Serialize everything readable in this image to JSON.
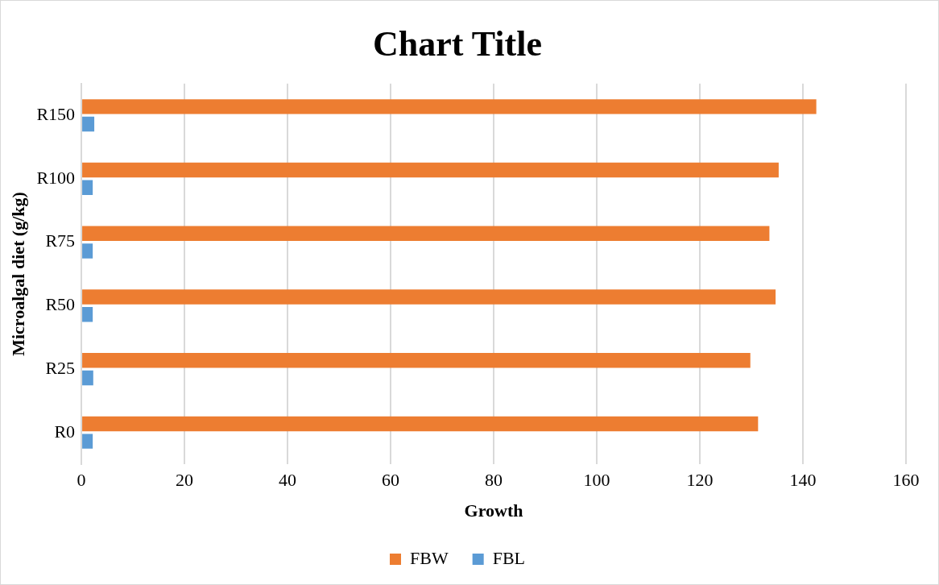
{
  "chart_data": {
    "type": "bar",
    "orientation": "horizontal",
    "title": "Chart Title",
    "xlabel": "Growth",
    "ylabel": "Microalgal diet (g/kg)",
    "categories": [
      "R150",
      "R100",
      "R75",
      "R50",
      "R25",
      "R0"
    ],
    "series": [
      {
        "name": "FBW",
        "color": "#ed7d31",
        "values": [
          142.6,
          135.3,
          133.5,
          134.7,
          129.8,
          131.3
        ]
      },
      {
        "name": "FBL",
        "color": "#5b9bd5",
        "values": [
          2.5,
          2.2,
          2.2,
          2.2,
          2.3,
          2.2
        ]
      }
    ],
    "xlim": [
      0,
      160
    ],
    "xticks": [
      0,
      20,
      40,
      60,
      80,
      100,
      120,
      140,
      160
    ],
    "grid": "x",
    "legend": "bottom"
  }
}
